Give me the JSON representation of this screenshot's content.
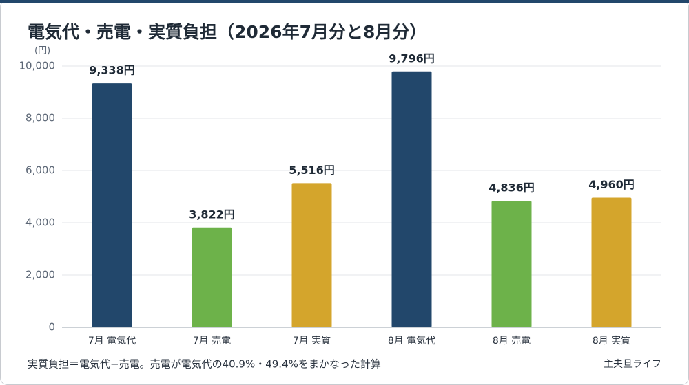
{
  "chart_data": {
    "type": "bar",
    "title": "電気代・売電・実質負担（2026年7月分と8月分）",
    "y_label": "(円)",
    "categories": [
      "7月 電気代",
      "7月 売電",
      "7月 実質",
      "8月 電気代",
      "8月 売電",
      "8月 実質"
    ],
    "values": [
      9338,
      3822,
      5516,
      9796,
      4836,
      4960
    ],
    "value_labels": [
      "9,338円",
      "3,822円",
      "5,516円",
      "9,796円",
      "4,836円",
      "4,960円"
    ],
    "colors": [
      "#22476b",
      "#6db24a",
      "#d4a52c",
      "#22476b",
      "#6db24a",
      "#d4a52c"
    ],
    "ylim": [
      0,
      10000
    ],
    "yticks": [
      0,
      {
        "value": 2000,
        "label": "2,000"
      },
      {
        "value": 4000,
        "label": "4,000"
      },
      {
        "value": 6000,
        "label": "6,000"
      },
      {
        "value": 8000,
        "label": "8,000"
      },
      {
        "value": 10000,
        "label": "10,000"
      }
    ],
    "grid": true,
    "footnote": "実質負担＝電気代−売電。売電が電気代の40.9%・49.4%をまかなった計算",
    "brand": "主夫旦ライフ"
  }
}
